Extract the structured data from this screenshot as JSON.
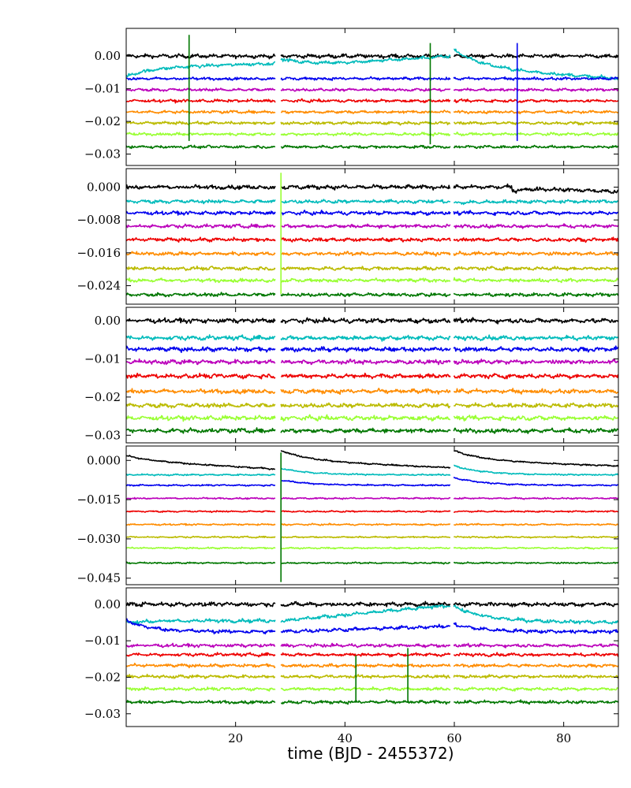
{
  "chart_data": [
    {
      "type": "line",
      "panel": 1,
      "xlabel": "",
      "ylabel": "",
      "xlim": [
        0,
        90
      ],
      "ylim": [
        -0.0335,
        0.0085
      ],
      "yticks": [
        0.0,
        -0.01,
        -0.02,
        -0.03
      ],
      "ytick_labels": [
        "0.00",
        "−0.01",
        "−0.02",
        "−0.03"
      ],
      "xticks": [
        20,
        40,
        60,
        80
      ],
      "xtick_labels": [],
      "gaps": [
        [
          27.3,
          28.3
        ],
        [
          59.3,
          59.9
        ]
      ],
      "spikes": [
        {
          "x": 11.5,
          "top": 0.0065,
          "bottom": -0.026,
          "color": "#007700"
        },
        {
          "x": 55.6,
          "top": 0.004,
          "bottom": -0.027,
          "color": "#007700"
        },
        {
          "x": 71.5,
          "top": 0.004,
          "bottom": -0.026,
          "color": "#0000ee"
        }
      ],
      "series": [
        {
          "color": "#000000",
          "offset": 0.0,
          "noise": 0.0008,
          "drifts": []
        },
        {
          "color": "#00bbbb",
          "offset": -0.0035,
          "noise": 0.0007,
          "drifts": [
            [
              0,
              28,
              -0.0027,
              0.0013
            ],
            [
              28,
              59.5,
              0.0028,
              0.0035
            ],
            [
              59.5,
              91,
              0.006,
              -0.0035
            ]
          ]
        },
        {
          "color": "#0000ee",
          "offset": -0.0069,
          "noise": 0.0006,
          "drifts": []
        },
        {
          "color": "#bb00bb",
          "offset": -0.0103,
          "noise": 0.0006,
          "drifts": []
        },
        {
          "color": "#ee0000",
          "offset": -0.0137,
          "noise": 0.0006,
          "drifts": []
        },
        {
          "color": "#ff8c00",
          "offset": -0.0171,
          "noise": 0.0006,
          "drifts": []
        },
        {
          "color": "#bbbb00",
          "offset": -0.0205,
          "noise": 0.0006,
          "drifts": []
        },
        {
          "color": "#99ff33",
          "offset": -0.0239,
          "noise": 0.0006,
          "drifts": []
        },
        {
          "color": "#007700",
          "offset": -0.0278,
          "noise": 0.0006,
          "drifts": []
        }
      ]
    },
    {
      "type": "line",
      "panel": 2,
      "xlabel": "",
      "ylabel": "",
      "xlim": [
        0,
        90
      ],
      "ylim": [
        -0.0285,
        0.0045
      ],
      "yticks": [
        0.0,
        -0.008,
        -0.016,
        -0.024
      ],
      "ytick_labels": [
        "0.000",
        "−0.008",
        "−0.016",
        "−0.024"
      ],
      "xticks": [
        20,
        40,
        60,
        80
      ],
      "xtick_labels": [],
      "gaps": [
        [
          27.3,
          28.3
        ],
        [
          59.3,
          59.9
        ]
      ],
      "spikes": [
        {
          "x": 28.3,
          "top": 0.0035,
          "bottom": -0.026,
          "color": "#99ff33"
        }
      ],
      "series": [
        {
          "color": "#000000",
          "offset": 0.0,
          "noise": 0.0007,
          "drifts": [
            [
              70.5,
              91,
              -0.0009,
              -0.0012
            ]
          ]
        },
        {
          "color": "#00bbbb",
          "offset": -0.0035,
          "noise": 0.0006,
          "drifts": [
            [
              59.5,
              91,
              -0.0004,
              0.0
            ]
          ]
        },
        {
          "color": "#0000ee",
          "offset": -0.0063,
          "noise": 0.0006,
          "drifts": []
        },
        {
          "color": "#bb00bb",
          "offset": -0.0095,
          "noise": 0.0006,
          "drifts": []
        },
        {
          "color": "#ee0000",
          "offset": -0.0128,
          "noise": 0.0006,
          "drifts": []
        },
        {
          "color": "#ff8c00",
          "offset": -0.0162,
          "noise": 0.0006,
          "drifts": []
        },
        {
          "color": "#bbbb00",
          "offset": -0.0198,
          "noise": 0.0006,
          "drifts": []
        },
        {
          "color": "#99ff33",
          "offset": -0.0227,
          "noise": 0.0006,
          "drifts": []
        },
        {
          "color": "#007700",
          "offset": -0.0262,
          "noise": 0.0006,
          "drifts": []
        }
      ]
    },
    {
      "type": "line",
      "panel": 3,
      "xlabel": "",
      "ylabel": "",
      "xlim": [
        0,
        90
      ],
      "ylim": [
        -0.032,
        0.0035
      ],
      "yticks": [
        0.0,
        -0.01,
        -0.02,
        -0.03
      ],
      "ytick_labels": [
        "0.00",
        "−0.01",
        "−0.02",
        "−0.03"
      ],
      "xticks": [
        20,
        40,
        60,
        80
      ],
      "xtick_labels": [],
      "gaps": [
        [
          27.3,
          28.3
        ],
        [
          59.3,
          59.9
        ]
      ],
      "spikes": [],
      "series": [
        {
          "color": "#000000",
          "offset": 0.0,
          "noise": 0.0008,
          "drifts": []
        },
        {
          "color": "#00bbbb",
          "offset": -0.0045,
          "noise": 0.0008,
          "drifts": []
        },
        {
          "color": "#0000ee",
          "offset": -0.0075,
          "noise": 0.0008,
          "drifts": []
        },
        {
          "color": "#bb00bb",
          "offset": -0.0108,
          "noise": 0.0008,
          "drifts": []
        },
        {
          "color": "#ee0000",
          "offset": -0.0145,
          "noise": 0.0008,
          "drifts": []
        },
        {
          "color": "#ff8c00",
          "offset": -0.0185,
          "noise": 0.0008,
          "drifts": []
        },
        {
          "color": "#bbbb00",
          "offset": -0.0222,
          "noise": 0.0008,
          "drifts": []
        },
        {
          "color": "#99ff33",
          "offset": -0.0255,
          "noise": 0.0008,
          "drifts": []
        },
        {
          "color": "#007700",
          "offset": -0.0288,
          "noise": 0.0008,
          "drifts": []
        }
      ]
    },
    {
      "type": "line",
      "panel": 4,
      "xlabel": "",
      "ylabel": "",
      "xlim": [
        0,
        90
      ],
      "ylim": [
        -0.0475,
        0.0055
      ],
      "yticks": [
        0.0,
        -0.015,
        -0.03,
        -0.045
      ],
      "ytick_labels": [
        "0.000",
        "−0.015",
        "−0.030",
        "−0.045"
      ],
      "xticks": [
        20,
        40,
        60,
        80
      ],
      "xtick_labels": [],
      "gaps": [
        [
          27.3,
          28.3
        ],
        [
          59.3,
          59.9
        ]
      ],
      "spikes": [
        {
          "x": 28.3,
          "top": 0.003,
          "bottom": -0.0465,
          "color": "#007700"
        }
      ],
      "series": [
        {
          "color": "#000000",
          "offset": 0.0,
          "noise": 0.0004,
          "drifts": [
            [
              0,
              27.3,
              0.0018,
              -0.0033
            ],
            [
              28.3,
              59.3,
              0.0038,
              -0.0028
            ],
            [
              59.9,
              91,
              0.0038,
              -0.0022
            ]
          ]
        },
        {
          "color": "#00bbbb",
          "offset": -0.0055,
          "noise": 0.0004,
          "drifts": [
            [
              28.3,
              59.3,
              0.0025,
              0.0
            ],
            [
              59.9,
              91,
              0.0035,
              0.0
            ]
          ]
        },
        {
          "color": "#0000ee",
          "offset": -0.0095,
          "noise": 0.0004,
          "drifts": [
            [
              28.3,
              59.3,
              0.002,
              0.0
            ],
            [
              59.9,
              91,
              0.003,
              0.0
            ]
          ]
        },
        {
          "color": "#bb00bb",
          "offset": -0.0145,
          "noise": 0.0004,
          "drifts": []
        },
        {
          "color": "#ee0000",
          "offset": -0.0195,
          "noise": 0.0004,
          "drifts": []
        },
        {
          "color": "#ff8c00",
          "offset": -0.0245,
          "noise": 0.0004,
          "drifts": []
        },
        {
          "color": "#bbbb00",
          "offset": -0.0293,
          "noise": 0.0004,
          "drifts": []
        },
        {
          "color": "#99ff33",
          "offset": -0.0335,
          "noise": 0.0004,
          "drifts": []
        },
        {
          "color": "#007700",
          "offset": -0.0392,
          "noise": 0.0004,
          "drifts": []
        }
      ]
    },
    {
      "type": "line",
      "panel": 5,
      "xlabel": "time (BJD - 2455372)",
      "ylabel": "",
      "xlim": [
        0,
        90
      ],
      "ylim": [
        -0.0335,
        0.0045
      ],
      "yticks": [
        0.0,
        -0.01,
        -0.02,
        -0.03
      ],
      "ytick_labels": [
        "0.00",
        "−0.01",
        "−0.02",
        "−0.03"
      ],
      "xticks": [
        20,
        40,
        60,
        80
      ],
      "xtick_labels": [
        "20",
        "40",
        "60",
        "80"
      ],
      "gaps": [
        [
          27.3,
          28.3
        ],
        [
          59.3,
          59.9
        ]
      ],
      "spikes": [
        {
          "x": 42,
          "top": -0.014,
          "bottom": -0.027,
          "color": "#007700"
        },
        {
          "x": 51.5,
          "top": -0.012,
          "bottom": -0.027,
          "color": "#007700"
        }
      ],
      "series": [
        {
          "color": "#000000",
          "offset": 0.0,
          "noise": 0.0008,
          "drifts": []
        },
        {
          "color": "#00bbbb",
          "offset": -0.0045,
          "noise": 0.0007,
          "drifts": [
            [
              0,
              27.3,
              -0.0005,
              0.0
            ],
            [
              28.3,
              59.3,
              0.0,
              0.0042
            ],
            [
              59.9,
              91,
              0.004,
              -0.0005
            ]
          ]
        },
        {
          "color": "#0000ee",
          "offset": -0.0075,
          "noise": 0.0007,
          "drifts": [
            [
              0,
              27.3,
              0.003,
              0.0
            ],
            [
              28.3,
              59.3,
              0.0,
              0.0015
            ],
            [
              59.9,
              91,
              0.002,
              0.0
            ]
          ]
        },
        {
          "color": "#bb00bb",
          "offset": -0.0113,
          "noise": 0.0006,
          "drifts": []
        },
        {
          "color": "#ee0000",
          "offset": -0.0138,
          "noise": 0.0006,
          "drifts": []
        },
        {
          "color": "#ff8c00",
          "offset": -0.0168,
          "noise": 0.0006,
          "drifts": []
        },
        {
          "color": "#bbbb00",
          "offset": -0.0198,
          "noise": 0.0006,
          "drifts": []
        },
        {
          "color": "#99ff33",
          "offset": -0.0232,
          "noise": 0.0006,
          "drifts": []
        },
        {
          "color": "#007700",
          "offset": -0.0268,
          "noise": 0.0006,
          "drifts": []
        }
      ]
    }
  ]
}
